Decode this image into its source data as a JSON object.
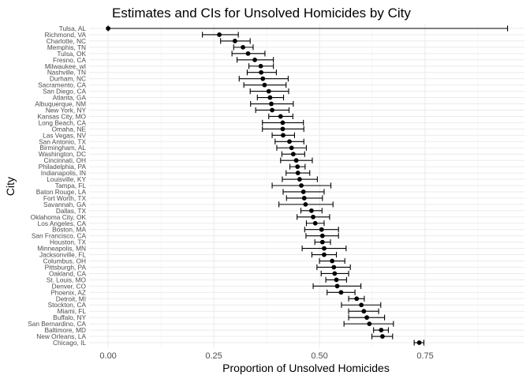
{
  "chart_data": {
    "type": "scatter",
    "title": "Estimates and CIs for Unsolved Homicides by City",
    "xlabel": "Proportion of Unsolved Homicides",
    "ylabel": "City",
    "xlim": [
      -0.045,
      0.985
    ],
    "xticks": [
      0.0,
      0.25,
      0.5,
      0.75
    ],
    "xtick_labels": [
      "0.00",
      "0.25",
      "0.50",
      "0.75"
    ],
    "grid": true,
    "legend": "none",
    "marker_color": "#000000",
    "error_bars": "horizontal 95% CI",
    "points": [
      {
        "city": "Tulsa, AL",
        "estimate": 0.0,
        "lower": 0.0,
        "upper": 0.945
      },
      {
        "city": "Richmond, VA",
        "estimate": 0.263,
        "lower": 0.223,
        "upper": 0.308
      },
      {
        "city": "Charlotte, NC",
        "estimate": 0.3,
        "lower": 0.266,
        "upper": 0.336
      },
      {
        "city": "Memphis, TN",
        "estimate": 0.319,
        "lower": 0.297,
        "upper": 0.343
      },
      {
        "city": "Tulsa, OK",
        "estimate": 0.331,
        "lower": 0.293,
        "upper": 0.371
      },
      {
        "city": "Fresno, CA",
        "estimate": 0.347,
        "lower": 0.305,
        "upper": 0.391
      },
      {
        "city": "Milwaukee, wI",
        "estimate": 0.361,
        "lower": 0.333,
        "upper": 0.391
      },
      {
        "city": "Nashville, TN",
        "estimate": 0.362,
        "lower": 0.329,
        "upper": 0.398
      },
      {
        "city": "Durham, NC",
        "estimate": 0.366,
        "lower": 0.31,
        "upper": 0.426
      },
      {
        "city": "Sacramento, CA",
        "estimate": 0.37,
        "lower": 0.321,
        "upper": 0.421
      },
      {
        "city": "San Diego, CA",
        "estimate": 0.38,
        "lower": 0.336,
        "upper": 0.427
      },
      {
        "city": "Atlanta, GA",
        "estimate": 0.383,
        "lower": 0.353,
        "upper": 0.415
      },
      {
        "city": "Albuquerque, NM",
        "estimate": 0.386,
        "lower": 0.337,
        "upper": 0.438
      },
      {
        "city": "New York, NY",
        "estimate": 0.388,
        "lower": 0.349,
        "upper": 0.428
      },
      {
        "city": "Kansas City, MO",
        "estimate": 0.408,
        "lower": 0.38,
        "upper": 0.437
      },
      {
        "city": "Long Beach, CA",
        "estimate": 0.413,
        "lower": 0.365,
        "upper": 0.462
      },
      {
        "city": "Omaha, NE",
        "estimate": 0.413,
        "lower": 0.365,
        "upper": 0.463
      },
      {
        "city": "Las Vegas, NV",
        "estimate": 0.414,
        "lower": 0.388,
        "upper": 0.441
      },
      {
        "city": "San Antonio, TX",
        "estimate": 0.429,
        "lower": 0.395,
        "upper": 0.463
      },
      {
        "city": "Birmingham, AL",
        "estimate": 0.434,
        "lower": 0.399,
        "upper": 0.469
      },
      {
        "city": "Washington, DC",
        "estimate": 0.438,
        "lower": 0.411,
        "upper": 0.465
      },
      {
        "city": "Cincinnati, OH",
        "estimate": 0.445,
        "lower": 0.408,
        "upper": 0.483
      },
      {
        "city": "Philadelphia, PA",
        "estimate": 0.448,
        "lower": 0.43,
        "upper": 0.466
      },
      {
        "city": "Indianapolis, IN",
        "estimate": 0.449,
        "lower": 0.421,
        "upper": 0.477
      },
      {
        "city": "Louisville, KY",
        "estimate": 0.453,
        "lower": 0.412,
        "upper": 0.495
      },
      {
        "city": "Tampa, FL",
        "estimate": 0.457,
        "lower": 0.388,
        "upper": 0.527
      },
      {
        "city": "Baton Rouge, LA",
        "estimate": 0.462,
        "lower": 0.414,
        "upper": 0.511
      },
      {
        "city": "Fort Worth, TX",
        "estimate": 0.464,
        "lower": 0.422,
        "upper": 0.507
      },
      {
        "city": "Savannah, GA",
        "estimate": 0.467,
        "lower": 0.404,
        "upper": 0.532
      },
      {
        "city": "Dallas, TX",
        "estimate": 0.481,
        "lower": 0.456,
        "upper": 0.506
      },
      {
        "city": "Oklahoma City, OK",
        "estimate": 0.485,
        "lower": 0.447,
        "upper": 0.524
      },
      {
        "city": "Los Angeles, CA",
        "estimate": 0.49,
        "lower": 0.469,
        "upper": 0.511
      },
      {
        "city": "Boston, MA",
        "estimate": 0.505,
        "lower": 0.465,
        "upper": 0.545
      },
      {
        "city": "San Francisco, CA",
        "estimate": 0.507,
        "lower": 0.468,
        "upper": 0.545
      },
      {
        "city": "Houston, TX",
        "estimate": 0.507,
        "lower": 0.489,
        "upper": 0.526
      },
      {
        "city": "Minneapolis, MN",
        "estimate": 0.511,
        "lower": 0.459,
        "upper": 0.563
      },
      {
        "city": "Jacksonville, FL",
        "estimate": 0.511,
        "lower": 0.482,
        "upper": 0.54
      },
      {
        "city": "Columbus, OH",
        "estimate": 0.53,
        "lower": 0.5,
        "upper": 0.56
      },
      {
        "city": "Pittsburgh, PA",
        "estimate": 0.534,
        "lower": 0.494,
        "upper": 0.573
      },
      {
        "city": "Oakland, CA",
        "estimate": 0.536,
        "lower": 0.504,
        "upper": 0.569
      },
      {
        "city": "St. Louis, MO",
        "estimate": 0.54,
        "lower": 0.515,
        "upper": 0.564
      },
      {
        "city": "Denver, CO",
        "estimate": 0.542,
        "lower": 0.485,
        "upper": 0.598
      },
      {
        "city": "Phoenix, AZ",
        "estimate": 0.551,
        "lower": 0.518,
        "upper": 0.584
      },
      {
        "city": "Detroit, MI",
        "estimate": 0.588,
        "lower": 0.569,
        "upper": 0.606
      },
      {
        "city": "Stockton, CA",
        "estimate": 0.599,
        "lower": 0.552,
        "upper": 0.645
      },
      {
        "city": "Miami, FL",
        "estimate": 0.605,
        "lower": 0.569,
        "upper": 0.64
      },
      {
        "city": "Buffalo, NY",
        "estimate": 0.612,
        "lower": 0.569,
        "upper": 0.654
      },
      {
        "city": "San Bernardino, CA",
        "estimate": 0.618,
        "lower": 0.558,
        "upper": 0.675
      },
      {
        "city": "Baltimore, MD",
        "estimate": 0.646,
        "lower": 0.628,
        "upper": 0.663
      },
      {
        "city": "New Orleans, LA",
        "estimate": 0.649,
        "lower": 0.624,
        "upper": 0.673
      },
      {
        "city": "Chicago, IL",
        "estimate": 0.736,
        "lower": 0.724,
        "upper": 0.747
      }
    ]
  }
}
